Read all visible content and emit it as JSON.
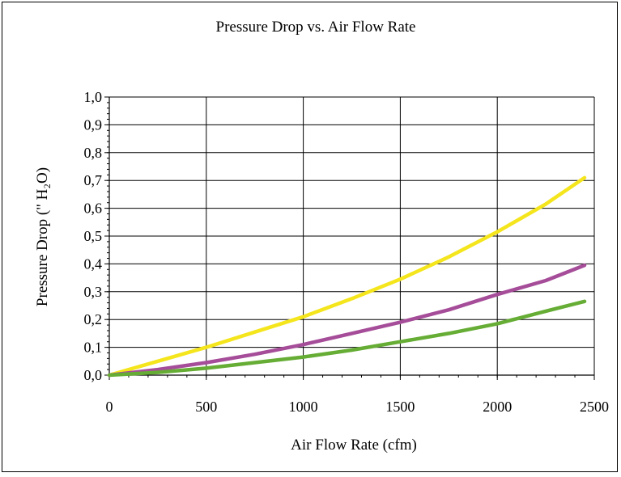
{
  "chart_data": {
    "type": "line",
    "title": "Pressure Drop vs. Air Flow Rate",
    "xlabel": "Air Flow Rate (cfm)",
    "ylabel": "Pressure Drop (\" H₂O)",
    "xlim": [
      0,
      2500
    ],
    "ylim": [
      0,
      1.0
    ],
    "x_ticks": [
      "0",
      "500",
      "1000",
      "1500",
      "2000",
      "2500"
    ],
    "y_ticks": [
      "0,0",
      "0,1",
      "0,2",
      "0,3",
      "0,4",
      "0,5",
      "0,6",
      "0,7",
      "0,8",
      "0,9",
      "1,0"
    ],
    "grid": true,
    "legend": "none",
    "series": [
      {
        "color": "#f4e51c",
        "x": [
          0,
          250,
          500,
          750,
          1000,
          1250,
          1500,
          1750,
          2000,
          2250,
          2450
        ],
        "y": [
          0.0,
          0.05,
          0.1,
          0.155,
          0.21,
          0.275,
          0.345,
          0.425,
          0.515,
          0.615,
          0.71
        ]
      },
      {
        "color": "#a64d99",
        "x": [
          0,
          250,
          500,
          750,
          1000,
          1250,
          1500,
          1750,
          2000,
          2250,
          2450
        ],
        "y": [
          0.0,
          0.02,
          0.045,
          0.075,
          0.11,
          0.15,
          0.19,
          0.235,
          0.29,
          0.34,
          0.395
        ]
      },
      {
        "color": "#66ad35",
        "x": [
          0,
          250,
          500,
          750,
          1000,
          1250,
          1500,
          1750,
          2000,
          2250,
          2450
        ],
        "y": [
          0.0,
          0.01,
          0.025,
          0.045,
          0.065,
          0.09,
          0.12,
          0.15,
          0.185,
          0.23,
          0.265
        ]
      }
    ]
  }
}
